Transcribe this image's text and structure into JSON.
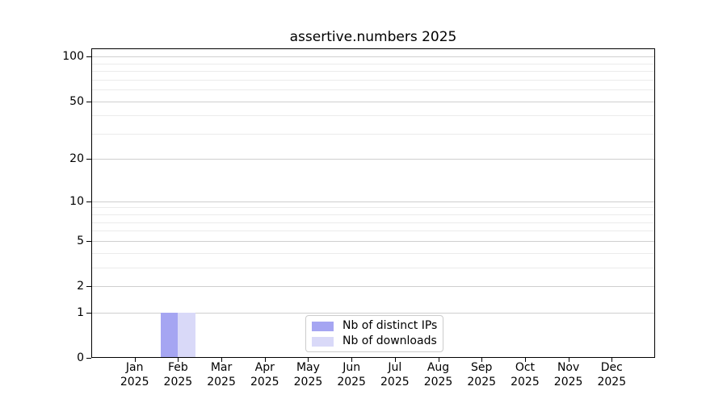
{
  "chart_data": {
    "type": "bar",
    "title": "assertive.numbers 2025",
    "x_tick_months": [
      "Jan",
      "Feb",
      "Mar",
      "Apr",
      "May",
      "Jun",
      "Jul",
      "Aug",
      "Sep",
      "Oct",
      "Nov",
      "Dec"
    ],
    "x_tick_year": "2025",
    "y_scale": "log1p",
    "ylim": [
      0,
      113
    ],
    "y_major_ticks": [
      0,
      1,
      2,
      5,
      10,
      20,
      50,
      100
    ],
    "y_minor_gridlines": [
      3,
      4,
      6,
      7,
      8,
      9,
      30,
      40,
      60,
      70,
      80,
      90
    ],
    "grid": true,
    "legend_position": "lower center",
    "series": [
      {
        "name": "Nb of distinct IPs",
        "color": "#a5a5f2",
        "values": [
          0,
          1,
          0,
          0,
          0,
          0,
          0,
          0,
          0,
          0,
          0,
          0
        ]
      },
      {
        "name": "Nb of downloads",
        "color": "#d9d9f8",
        "values": [
          0,
          1,
          0,
          0,
          0,
          0,
          0,
          0,
          0,
          0,
          0,
          0
        ]
      }
    ]
  },
  "colors": {
    "background": "#ffffff",
    "axis": "#000000",
    "grid_major": "#cfcfcf",
    "grid_minor": "#ebebeb",
    "legend_border": "#cccccc",
    "text": "#000000"
  }
}
